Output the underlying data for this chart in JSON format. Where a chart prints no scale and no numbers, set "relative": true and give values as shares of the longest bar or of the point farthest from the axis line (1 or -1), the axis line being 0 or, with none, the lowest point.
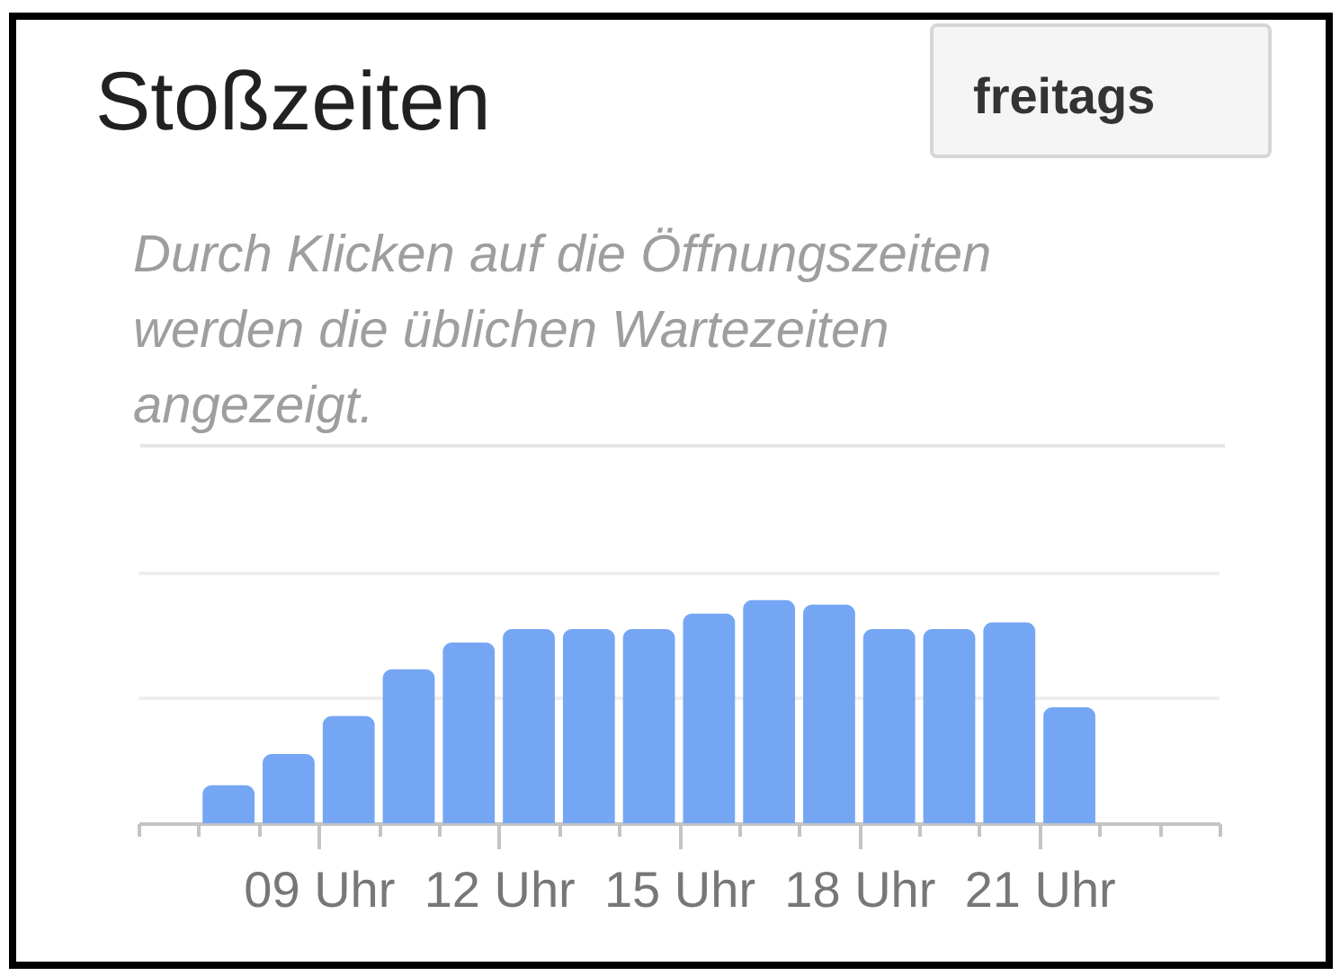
{
  "chart_data": {
    "type": "bar",
    "title": "Stoßzeiten",
    "subtitle": "Durch Klicken auf die Öffnungszeiten werden die üblichen Wartezeiten angezeigt.",
    "annotations": [
      "freitags"
    ],
    "relative": true,
    "x": [
      7.5,
      8.5,
      9.5,
      10.5,
      11.5,
      12.5,
      13.5,
      14.5,
      15.5,
      16.5,
      17.5,
      18.5,
      19.5,
      20.5,
      21.5
    ],
    "values": [
      0.17,
      0.31,
      0.48,
      0.69,
      0.81,
      0.87,
      0.87,
      0.87,
      0.94,
      1,
      0.98,
      0.87,
      0.87,
      0.9,
      0.52
    ],
    "color": "#74a6f4",
    "xlim": [
      6,
      24
    ],
    "xticks": [
      {
        "value": 6,
        "label": null
      },
      {
        "value": 7,
        "label": null
      },
      {
        "value": 8,
        "label": null
      },
      {
        "value": 9,
        "label": "09 Uhr"
      },
      {
        "value": 10,
        "label": null
      },
      {
        "value": 11,
        "label": null
      },
      {
        "value": 12,
        "label": "12 Uhr"
      },
      {
        "value": 13,
        "label": null
      },
      {
        "value": 14,
        "label": null
      },
      {
        "value": 15,
        "label": "15 Uhr"
      },
      {
        "value": 16,
        "label": null
      },
      {
        "value": 17,
        "label": null
      },
      {
        "value": 18,
        "label": "18 Uhr"
      },
      {
        "value": 19,
        "label": null
      },
      {
        "value": 20,
        "label": null
      },
      {
        "value": 21,
        "label": "21 Uhr"
      },
      {
        "value": 22,
        "label": null
      },
      {
        "value": 23,
        "label": null
      },
      {
        "value": 24,
        "label": null
      }
    ],
    "ref_lines": [
      {
        "axis": "y",
        "value": 0.56,
        "color": "#eeeeee"
      },
      {
        "axis": "y",
        "value": 1.12,
        "color": "#eeeeee"
      }
    ]
  }
}
